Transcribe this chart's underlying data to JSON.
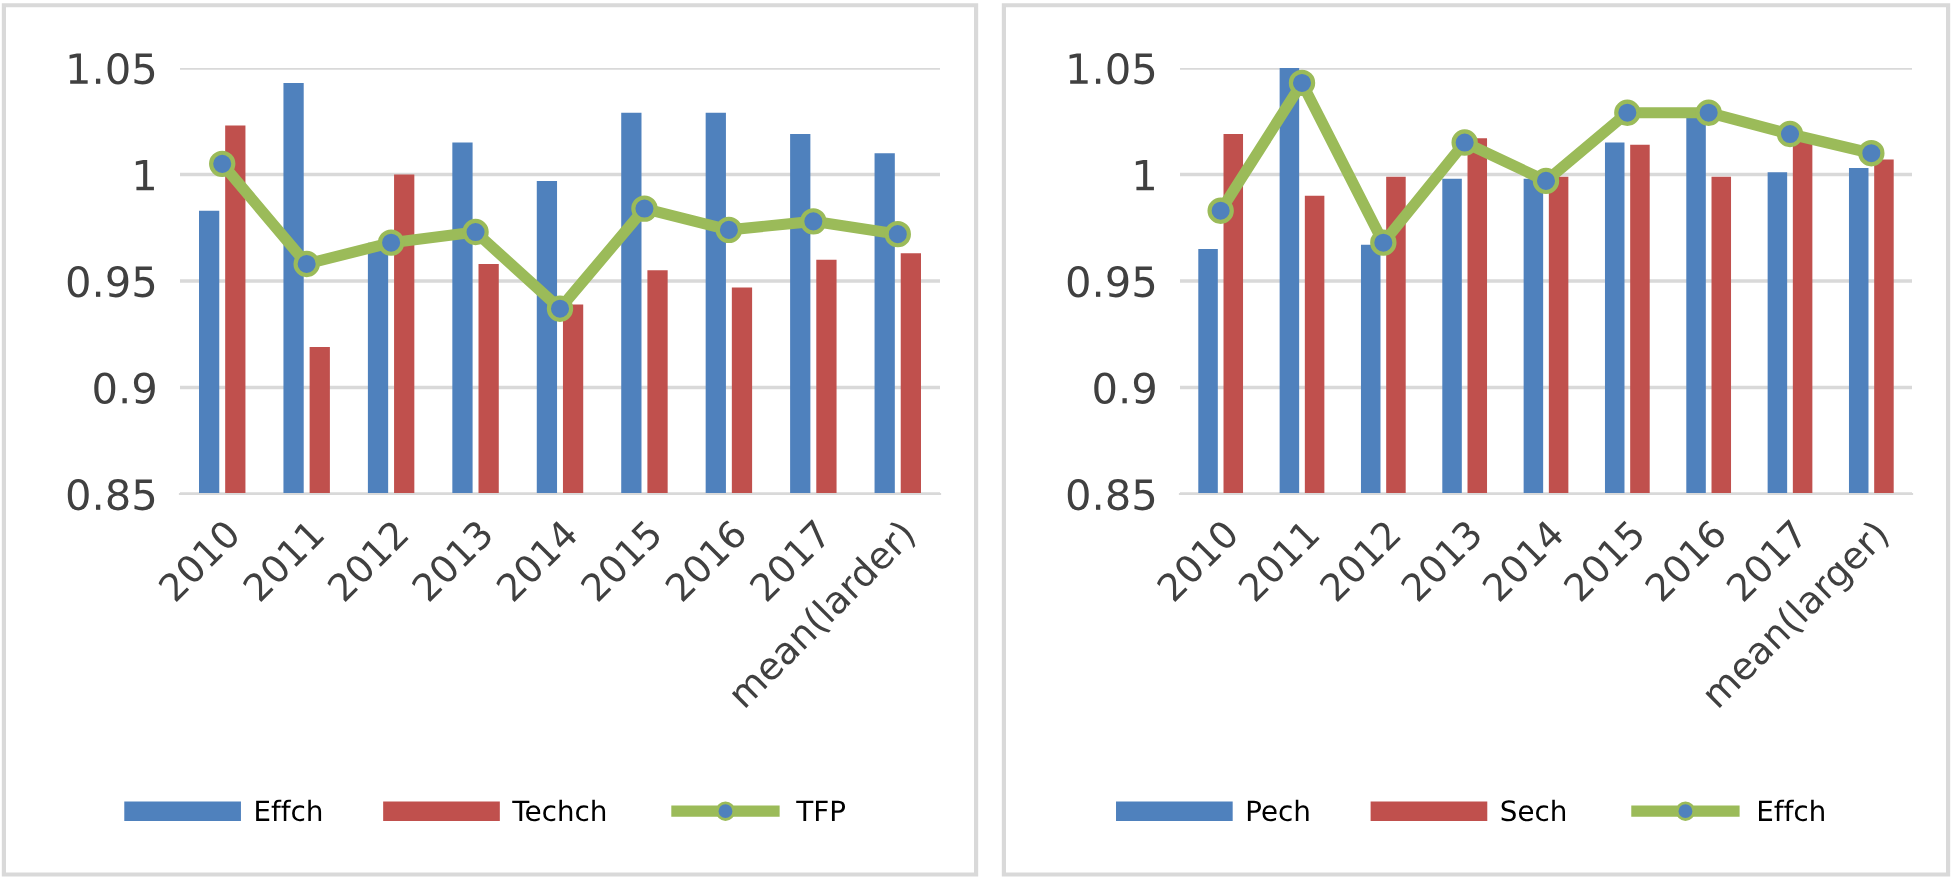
{
  "chart_data": [
    {
      "type": "bar",
      "categories": [
        "2010",
        "2011",
        "2012",
        "2013",
        "2014",
        "2015",
        "2016",
        "2017",
        "mean(larder)"
      ],
      "ylim": [
        0.85,
        1.05
      ],
      "yticks": [
        0.85,
        0.9,
        0.95,
        1,
        1.05
      ],
      "grid": "y",
      "legend": "bottom",
      "series": [
        {
          "name": "Effch",
          "color": "#4f81bd",
          "values": [
            0.983,
            1.043,
            0.968,
            1.015,
            0.997,
            1.029,
            1.029,
            1.019,
            1.01
          ]
        },
        {
          "name": "Techch",
          "color": "#c0504d",
          "values": [
            1.023,
            0.919,
            1.0,
            0.958,
            0.939,
            0.955,
            0.947,
            0.96,
            0.963
          ]
        },
        {
          "name": "TFP",
          "type": "line",
          "color": "#9bbb59",
          "marker": "circle",
          "values": [
            1.005,
            0.958,
            0.968,
            0.973,
            0.937,
            0.984,
            0.974,
            0.978,
            0.972
          ]
        }
      ]
    },
    {
      "type": "bar",
      "categories": [
        "2010",
        "2011",
        "2012",
        "2013",
        "2014",
        "2015",
        "2016",
        "2017",
        "mean(larger)"
      ],
      "ylim": [
        0.85,
        1.05
      ],
      "yticks": [
        0.85,
        0.9,
        0.95,
        1,
        1.05
      ],
      "grid": "y",
      "legend": "bottom",
      "series": [
        {
          "name": "Pech",
          "color": "#4f81bd",
          "values": [
            0.965,
            1.05,
            0.967,
            0.998,
            0.998,
            1.015,
            1.027,
            1.001,
            1.003
          ]
        },
        {
          "name": "Sech",
          "color": "#c0504d",
          "values": [
            1.019,
            0.99,
            0.999,
            1.017,
            0.999,
            1.014,
            0.999,
            1.016,
            1.007
          ]
        },
        {
          "name": "Effch",
          "type": "line",
          "color": "#9bbb59",
          "marker": "circle",
          "values": [
            0.983,
            1.043,
            0.968,
            1.015,
            0.997,
            1.029,
            1.029,
            1.019,
            1.01
          ]
        }
      ]
    }
  ]
}
